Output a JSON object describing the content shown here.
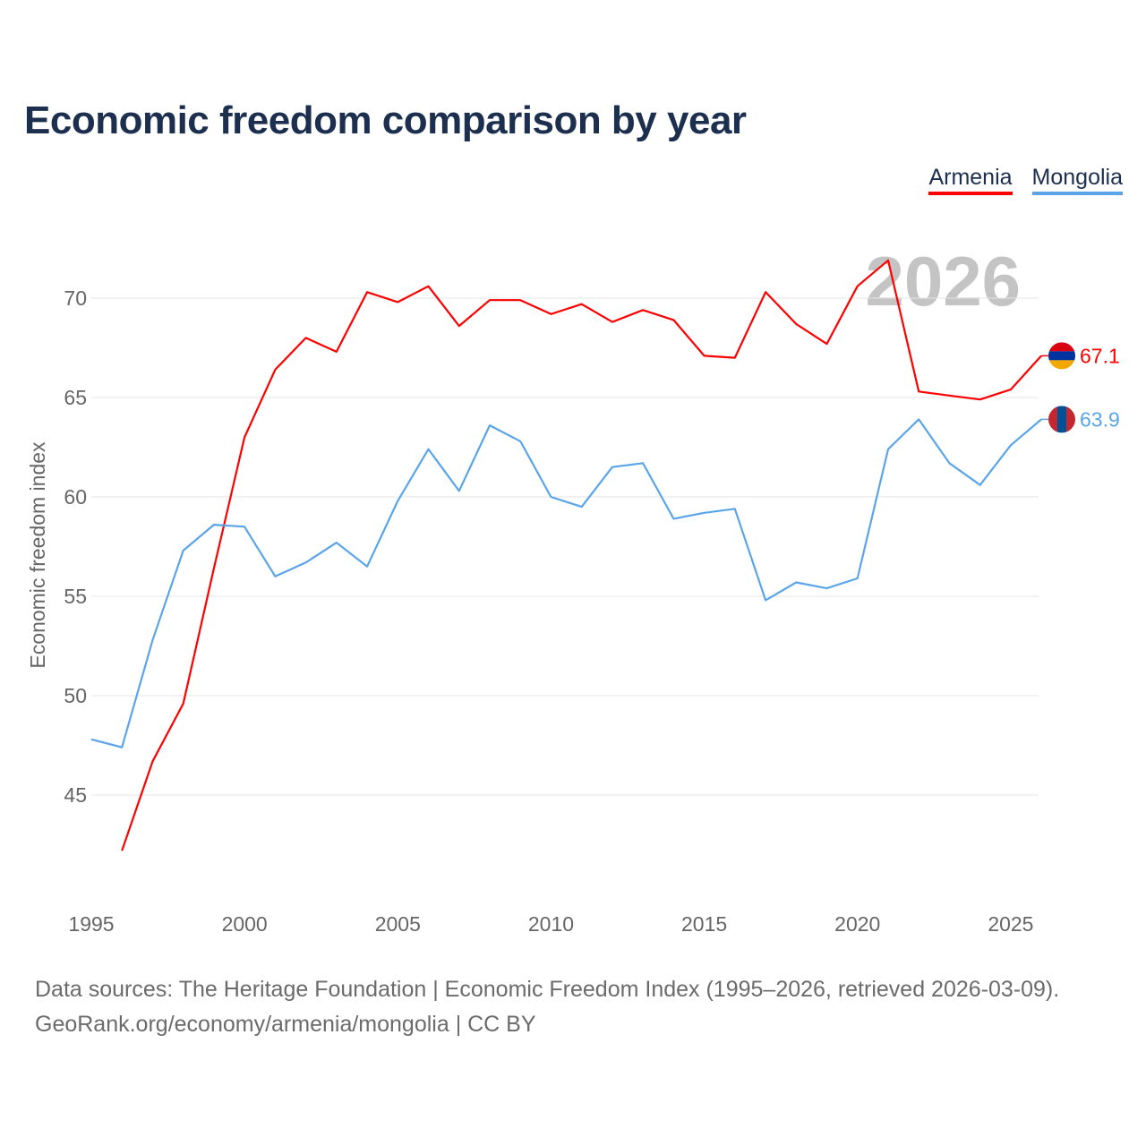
{
  "chart_data": {
    "type": "line",
    "title": "Economic freedom comparison by year",
    "xlabel": "",
    "ylabel": "Economic freedom index",
    "xlim": [
      1995,
      2026
    ],
    "ylim": [
      40,
      73
    ],
    "x_ticks": [
      1995,
      2000,
      2005,
      2010,
      2015,
      2020,
      2025
    ],
    "y_ticks": [
      45,
      50,
      55,
      60,
      65,
      70
    ],
    "grid": true,
    "legend_position": "top-right",
    "year_watermark": "2026",
    "series": [
      {
        "name": "Armenia",
        "color": "#ff0000",
        "end_label": "67.1",
        "x": [
          1996,
          1997,
          1998,
          1999,
          2000,
          2001,
          2002,
          2003,
          2004,
          2005,
          2006,
          2007,
          2008,
          2009,
          2010,
          2011,
          2012,
          2013,
          2014,
          2015,
          2016,
          2017,
          2018,
          2019,
          2020,
          2021,
          2022,
          2023,
          2024,
          2025,
          2026
        ],
        "values": [
          42.2,
          46.7,
          49.6,
          56.4,
          63.0,
          66.4,
          68.0,
          67.3,
          70.3,
          69.8,
          70.6,
          68.6,
          69.9,
          69.9,
          69.2,
          69.7,
          68.8,
          69.4,
          68.9,
          67.1,
          67.0,
          70.3,
          68.7,
          67.7,
          70.6,
          71.9,
          65.3,
          65.1,
          64.9,
          65.4,
          67.1
        ]
      },
      {
        "name": "Mongolia",
        "color": "#5aa5ea",
        "end_label": "63.9",
        "x": [
          1995,
          1996,
          1997,
          1998,
          1999,
          2000,
          2001,
          2002,
          2003,
          2004,
          2005,
          2006,
          2007,
          2008,
          2009,
          2010,
          2011,
          2012,
          2013,
          2014,
          2015,
          2016,
          2017,
          2018,
          2019,
          2020,
          2021,
          2022,
          2023,
          2024,
          2025,
          2026
        ],
        "values": [
          47.8,
          47.4,
          52.8,
          57.3,
          58.6,
          58.5,
          56.0,
          56.7,
          57.7,
          56.5,
          59.8,
          62.4,
          60.3,
          63.6,
          62.8,
          60.0,
          59.5,
          61.5,
          61.7,
          58.9,
          59.2,
          59.4,
          54.8,
          55.7,
          55.4,
          55.9,
          62.4,
          63.9,
          61.7,
          60.6,
          62.6,
          63.9
        ]
      }
    ]
  },
  "footer": {
    "line1": "Data sources: The Heritage Foundation | Economic Freedom Index (1995–2026, retrieved 2026-03-09).",
    "line2": "GeoRank.org/economy/armenia/mongolia | CC BY"
  }
}
